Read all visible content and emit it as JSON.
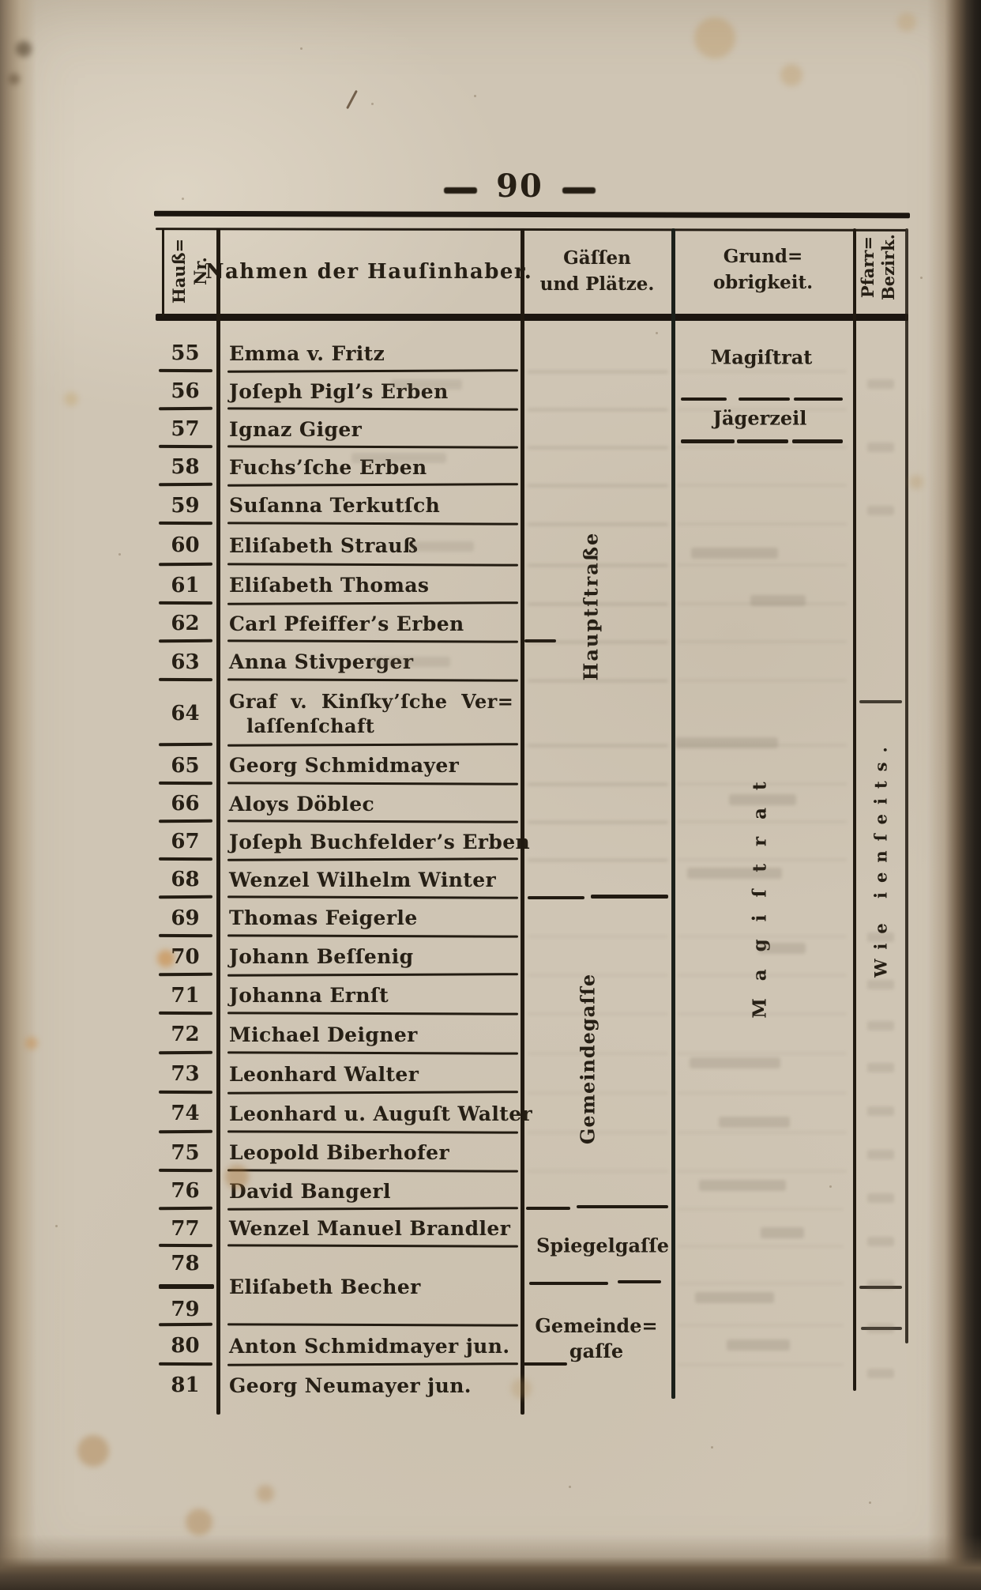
{
  "page_number": "90",
  "table": {
    "header": {
      "haus_nr": [
        "Hauß=",
        "Nr."
      ],
      "nahmen": "Nahmen der Hauſinhaber.",
      "gaessen": [
        "Gäſſen",
        "und Plätze."
      ],
      "grund": [
        "Grund=",
        "obrigkeit."
      ],
      "pfarr": [
        "Pfarr=",
        "Bezirk."
      ]
    },
    "rows": [
      {
        "nr": "55",
        "name": "Emma v. Fritz"
      },
      {
        "nr": "56",
        "name": "Joſeph Pigl’s Erben"
      },
      {
        "nr": "57",
        "name": "Ignaz Giger"
      },
      {
        "nr": "58",
        "name": "Fuchs’ſche Erben"
      },
      {
        "nr": "59",
        "name": "Suſanna Terkutſch"
      },
      {
        "nr": "60",
        "name": "Eliſabeth Strauß"
      },
      {
        "nr": "61",
        "name": "Eliſabeth Thomas"
      },
      {
        "nr": "62",
        "name": "Carl Pfeiffer’s Erben"
      },
      {
        "nr": "63",
        "name": "Anna Stivperger"
      },
      {
        "nr": "64",
        "name": "Graf v. Kinſky’ſche Ver=",
        "name2": "laſſenſchaft"
      },
      {
        "nr": "65",
        "name": "Georg Schmidmayer"
      },
      {
        "nr": "66",
        "name": "Aloys Döblec"
      },
      {
        "nr": "67",
        "name": "Joſeph Buchfelder’s Erben"
      },
      {
        "nr": "68",
        "name": "Wenzel Wilhelm Winter"
      },
      {
        "nr": "69",
        "name": "Thomas Feigerle"
      },
      {
        "nr": "70",
        "name": "Johann Beſſenig"
      },
      {
        "nr": "71",
        "name": "Johanna Ernſt"
      },
      {
        "nr": "72",
        "name": "Michael Deigner"
      },
      {
        "nr": "73",
        "name": "Leonhard Walter"
      },
      {
        "nr": "74",
        "name": "Leonhard u. Auguſt Walter"
      },
      {
        "nr": "75",
        "name": "Leopold Biberhofer"
      },
      {
        "nr": "76",
        "name": "David Bangerl"
      },
      {
        "nr": "77",
        "name": "Wenzel Manuel Brandler"
      },
      {
        "nr": "78",
        "nr2": "79",
        "name": "Eliſabeth Becher"
      },
      {
        "nr": "80",
        "name": "Anton Schmidmayer jun."
      },
      {
        "nr": "81",
        "name": "Georg Neumayer jun."
      }
    ],
    "streets": {
      "hauptstrasse": "Hauptſtraße",
      "gemeindegasse_vertical": "Gemeindegaſſe",
      "spiegelgasse": "Spiegelgaſſe",
      "gemeindegasse_lines": [
        "Gemeinde=",
        "gaſſe"
      ]
    },
    "grundobrigkeit": {
      "magistrat_top": "Magiſtrat",
      "jaegerzeil": "Jägerzeil",
      "magistrat_vertical": "Magiſtrat"
    },
    "pfarr_bezirk": {
      "wie_ienseits": "Wie ienſeits."
    }
  }
}
